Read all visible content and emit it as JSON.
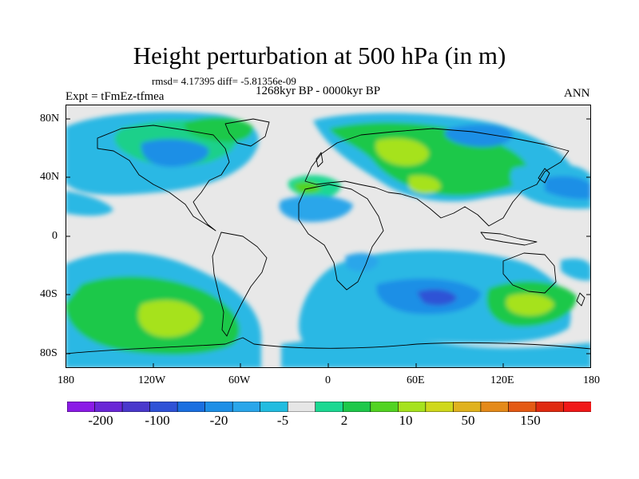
{
  "title": "Height perturbation at 500 hPa (in m)",
  "stats_line": "rmsd= 4.17395 diff= -5.81356e-09",
  "period_label": "1268kyr BP - 0000kyr BP",
  "experiment_label": "Expt = tFmEz-tfmea",
  "season_label": "ANN",
  "map": {
    "projection": "cylindrical equidistant",
    "lon_range": [
      -180,
      180
    ],
    "lat_range": [
      -90,
      90
    ],
    "x_tick_labels": [
      "180",
      "120W",
      "60W",
      "0",
      "60E",
      "120E",
      "180"
    ],
    "y_tick_labels": [
      "80N",
      "40N",
      "0",
      "40S",
      "80S"
    ],
    "ocean_fill": "#e8e8e8",
    "coast_color": "#000000"
  },
  "colorbar": {
    "colors": [
      "#8b1be6",
      "#6a27d6",
      "#4a39cc",
      "#2f52d6",
      "#1a6fe0",
      "#1e8fe6",
      "#2aa6ea",
      "#22bce0",
      "#e6e6e6",
      "#1cd892",
      "#1ec84a",
      "#52d322",
      "#a6e21e",
      "#cfd81c",
      "#e0b21e",
      "#e48a1a",
      "#e45a14",
      "#e02a10",
      "#f01818"
    ],
    "labels": [
      "-200",
      "-100",
      "-20",
      "-5",
      "2",
      "10",
      "50",
      "150"
    ]
  }
}
